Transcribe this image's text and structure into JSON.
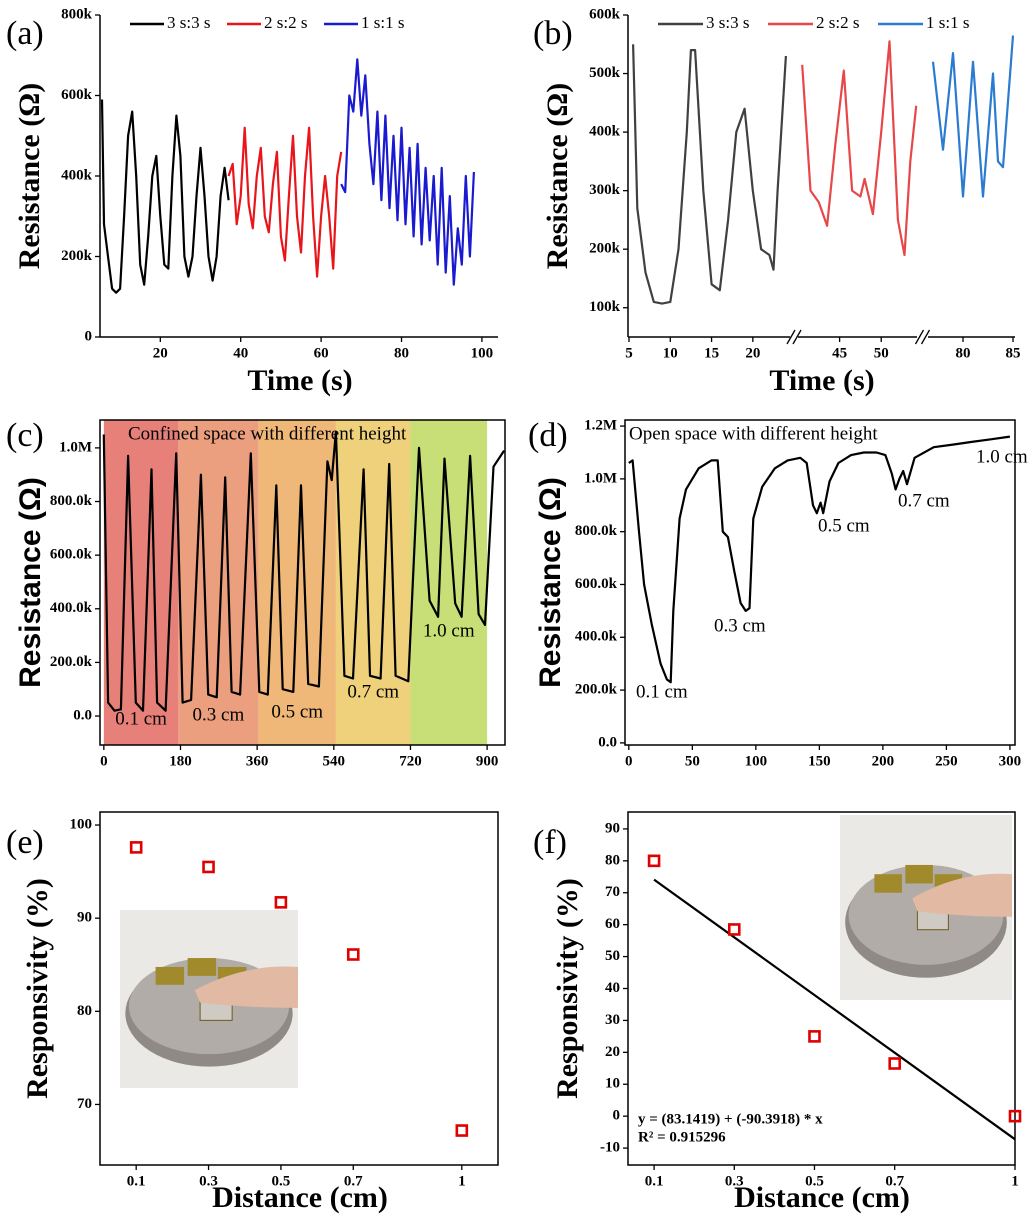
{
  "chart_data": [
    {
      "type": "line",
      "panel_label": "(a)",
      "xlabel": "Time (s)",
      "ylabel": "Resistance (Ω)",
      "legend": "top",
      "xlim": [
        5,
        104
      ],
      "ylim": [
        0,
        800000
      ],
      "xticks": [
        20,
        40,
        60,
        80,
        100
      ],
      "yticks": [
        0,
        {
          "value": 200000,
          "label": "200k"
        },
        {
          "value": 400000,
          "label": "400k"
        },
        {
          "value": 600000,
          "label": "600k"
        },
        {
          "value": 800000,
          "label": "800k"
        }
      ],
      "series": [
        {
          "name": "3 s:3 s",
          "color": "#000000",
          "x": [
            5.5,
            6,
            7,
            8,
            9,
            10,
            11,
            12,
            13,
            14,
            15,
            16,
            17,
            18,
            19,
            20,
            21,
            22,
            23,
            24,
            25,
            26,
            27,
            28,
            29,
            30,
            31,
            32,
            33,
            34,
            35,
            36,
            37
          ],
          "values": [
            590000,
            280000,
            200000,
            120000,
            110000,
            120000,
            300000,
            500000,
            560000,
            400000,
            180000,
            130000,
            250000,
            400000,
            450000,
            300000,
            180000,
            170000,
            400000,
            550000,
            450000,
            200000,
            150000,
            200000,
            350000,
            470000,
            350000,
            200000,
            140000,
            200000,
            350000,
            420000,
            340000
          ]
        },
        {
          "name": "2 s:2 s",
          "color": "#e8161b",
          "x": [
            37,
            38,
            39,
            40,
            41,
            42,
            43,
            44,
            45,
            46,
            47,
            48,
            49,
            50,
            51,
            52,
            53,
            54,
            55,
            56,
            57,
            58,
            59,
            60,
            61,
            62,
            63,
            64,
            65
          ],
          "values": [
            400000,
            430000,
            280000,
            350000,
            520000,
            330000,
            270000,
            400000,
            470000,
            300000,
            260000,
            380000,
            460000,
            250000,
            190000,
            350000,
            500000,
            300000,
            210000,
            400000,
            520000,
            300000,
            150000,
            300000,
            400000,
            300000,
            170000,
            400000,
            460000
          ]
        },
        {
          "name": "1 s:1 s",
          "color": "#1a1ad0",
          "x": [
            65,
            66,
            67,
            68,
            69,
            70,
            71,
            72,
            73,
            74,
            75,
            76,
            77,
            78,
            79,
            80,
            81,
            82,
            83,
            84,
            85,
            86,
            87,
            88,
            89,
            90,
            91,
            92,
            93,
            94,
            95,
            96,
            97,
            98
          ],
          "values": [
            380000,
            360000,
            600000,
            560000,
            690000,
            550000,
            650000,
            480000,
            380000,
            560000,
            340000,
            550000,
            320000,
            500000,
            290000,
            520000,
            280000,
            470000,
            250000,
            480000,
            230000,
            420000,
            240000,
            400000,
            180000,
            420000,
            160000,
            350000,
            130000,
            270000,
            180000,
            400000,
            200000,
            410000
          ]
        }
      ]
    },
    {
      "type": "line",
      "panel_label": "(b)",
      "xlabel": "Time (s)",
      "ylabel": "Resistance (Ω)",
      "legend": "top",
      "xsegments": [
        [
          5,
          24.5
        ],
        [
          40,
          54.3
        ],
        [
          76.5,
          85.2
        ]
      ],
      "ylim": [
        50000,
        600000
      ],
      "xticks": [
        5,
        10,
        15,
        20,
        45,
        50,
        80,
        85
      ],
      "yticks": [
        {
          "value": 100000,
          "label": "100k"
        },
        {
          "value": 200000,
          "label": "200k"
        },
        {
          "value": 300000,
          "label": "300k"
        },
        {
          "value": 400000,
          "label": "400k"
        },
        {
          "value": 500000,
          "label": "500k"
        },
        {
          "value": 600000,
          "label": "600k"
        }
      ],
      "series": [
        {
          "name": "3 s:3 s",
          "color": "#404040",
          "x": [
            5.5,
            6,
            7,
            8,
            9,
            10,
            11,
            12,
            12.5,
            13,
            14,
            15,
            16,
            17,
            18,
            19,
            20,
            21,
            22,
            22.5,
            23,
            24
          ],
          "values": [
            550000,
            270000,
            160000,
            110000,
            107000,
            110000,
            200000,
            400000,
            540000,
            540000,
            300000,
            140000,
            130000,
            250000,
            400000,
            440000,
            300000,
            200000,
            190000,
            165000,
            300000,
            530000
          ]
        },
        {
          "name": "2 s:2 s",
          "color": "#e8474a",
          "x": [
            40.5,
            41.5,
            42.5,
            43.5,
            44.5,
            45.5,
            46.5,
            47.5,
            48,
            49,
            50,
            51,
            52,
            52.8,
            53.5,
            54.2
          ],
          "values": [
            515000,
            300000,
            280000,
            240000,
            380000,
            505000,
            300000,
            290000,
            320000,
            260000,
            400000,
            555000,
            250000,
            190000,
            350000,
            445000
          ]
        },
        {
          "name": "1 s:1 s",
          "color": "#2b7bd0",
          "x": [
            77,
            78,
            79,
            80,
            81,
            82,
            83,
            83.5,
            84,
            85
          ],
          "values": [
            520000,
            370000,
            535000,
            290000,
            520000,
            290000,
            500000,
            350000,
            340000,
            565000
          ]
        }
      ]
    },
    {
      "type": "line",
      "panel_label": "(c)",
      "ylabel": "Resistance (Ω)",
      "annotation": "Confined space with different height",
      "xlim": [
        -9,
        942
      ],
      "ylim": [
        -108000,
        1104000
      ],
      "xticks": [
        0,
        180,
        360,
        540,
        720,
        900
      ],
      "yticks": [
        {
          "value": 0,
          "label": "0.0"
        },
        {
          "value": 200000,
          "label": "200.0k"
        },
        {
          "value": 400000,
          "label": "400.0k"
        },
        {
          "value": 600000,
          "label": "600.0k"
        },
        {
          "value": 800000,
          "label": "800.0k"
        },
        {
          "value": 1000000,
          "label": "1.0M"
        }
      ],
      "bands": [
        {
          "range": [
            0,
            175
          ],
          "color": "#e8807a",
          "label": "0.1 cm"
        },
        {
          "range": [
            175,
            363
          ],
          "color": "#eb9f7e",
          "label": "0.3 cm"
        },
        {
          "range": [
            363,
            545
          ],
          "color": "#efb878",
          "label": "0.5 cm"
        },
        {
          "range": [
            545,
            720
          ],
          "color": "#efd17c",
          "label": "0.7 cm"
        },
        {
          "range": [
            720,
            900
          ],
          "color": "#c7df76",
          "label": "1.0 cm"
        }
      ],
      "series": [
        {
          "color": "#000000",
          "x": [
            0,
            10,
            25,
            40,
            57,
            75,
            92,
            112,
            125,
            145,
            170,
            185,
            205,
            228,
            245,
            265,
            285,
            300,
            320,
            345,
            365,
            385,
            405,
            420,
            445,
            463,
            480,
            505,
            525,
            535,
            545,
            565,
            585,
            610,
            625,
            650,
            670,
            685,
            715,
            740,
            765,
            785,
            800,
            825,
            840,
            860,
            880,
            895,
            915,
            940
          ],
          "values": [
            1050000,
            50000,
            20000,
            25000,
            970000,
            50000,
            20000,
            920000,
            50000,
            20000,
            980000,
            50000,
            60000,
            900000,
            80000,
            70000,
            890000,
            90000,
            80000,
            980000,
            90000,
            80000,
            860000,
            100000,
            90000,
            860000,
            120000,
            110000,
            950000,
            880000,
            1060000,
            150000,
            140000,
            920000,
            150000,
            140000,
            940000,
            150000,
            130000,
            1000000,
            430000,
            370000,
            960000,
            420000,
            370000,
            970000,
            380000,
            340000,
            930000,
            990000
          ]
        }
      ]
    },
    {
      "type": "line",
      "panel_label": "(d)",
      "ylabel": "Resistance (Ω)",
      "annotation": "Open space with different height",
      "annotations": [
        "0.1 cm",
        "0.3 cm",
        "0.5 cm",
        "0.7 cm",
        "1.0 cm"
      ],
      "xlim": [
        -3,
        304
      ],
      "ylim": [
        -8000,
        1223000
      ],
      "xticks": [
        0,
        50,
        100,
        150,
        200,
        250,
        300
      ],
      "yticks": [
        {
          "value": 0,
          "label": "0.0"
        },
        {
          "value": 200000,
          "label": "200.0k"
        },
        {
          "value": 400000,
          "label": "400.0k"
        },
        {
          "value": 600000,
          "label": "600.0k"
        },
        {
          "value": 800000,
          "label": "800.0k"
        },
        {
          "value": 1000000,
          "label": "1.0M"
        },
        {
          "value": 1200000,
          "label": "1.2M"
        }
      ],
      "series": [
        {
          "color": "#000000",
          "x": [
            0,
            3,
            8,
            12,
            18,
            25,
            30,
            33,
            35,
            40,
            45,
            55,
            65,
            70,
            74,
            78,
            83,
            88,
            92,
            95,
            98,
            105,
            115,
            125,
            135,
            140,
            145,
            148,
            151,
            153,
            158,
            165,
            175,
            185,
            195,
            202,
            207,
            210,
            213,
            216,
            219,
            225,
            240,
            255,
            270,
            285,
            300
          ],
          "values": [
            1060000,
            1070000,
            800000,
            600000,
            450000,
            300000,
            240000,
            230000,
            500000,
            850000,
            960000,
            1040000,
            1070000,
            1070000,
            800000,
            780000,
            650000,
            530000,
            500000,
            510000,
            850000,
            970000,
            1040000,
            1070000,
            1080000,
            1060000,
            900000,
            870000,
            910000,
            870000,
            990000,
            1060000,
            1090000,
            1100000,
            1100000,
            1090000,
            1020000,
            960000,
            1000000,
            1030000,
            980000,
            1080000,
            1120000,
            1130000,
            1140000,
            1150000,
            1160000
          ]
        }
      ]
    },
    {
      "type": "scatter",
      "panel_label": "(e)",
      "xlabel": "Distance (cm)",
      "ylabel": "Responsivity (%)",
      "xlim": [
        0,
        1.1
      ],
      "ylim": [
        63.5,
        101.4
      ],
      "xticks": [
        0.1,
        0.3,
        0.5,
        0.7,
        1
      ],
      "yticks": [
        70,
        80,
        90,
        100
      ],
      "color": "#e00000",
      "x": [
        0.1,
        0.3,
        0.5,
        0.7,
        1
      ],
      "values": [
        97.6,
        95.5,
        91.7,
        86.1,
        67.2
      ]
    },
    {
      "type": "scatter",
      "panel_label": "(f)",
      "xlabel": "Distance (cm)",
      "ylabel": "Responsivity (%)",
      "xlim": [
        0.035,
        1.0
      ],
      "ylim": [
        -15.3,
        95.3
      ],
      "xticks": [
        0.1,
        0.3,
        0.5,
        0.7,
        1
      ],
      "yticks": [
        -10,
        0,
        10,
        20,
        30,
        40,
        50,
        60,
        70,
        80,
        90
      ],
      "color": "#e00000",
      "x": [
        0.1,
        0.3,
        0.5,
        0.7,
        1
      ],
      "values": [
        80,
        58.5,
        25,
        16.5,
        0
      ],
      "fit": {
        "intercept": 83.1419,
        "slope": -90.3918,
        "equation": "y = (83.1419) + (-90.3918) * x",
        "r_squared": "R² = 0.915296"
      }
    }
  ]
}
